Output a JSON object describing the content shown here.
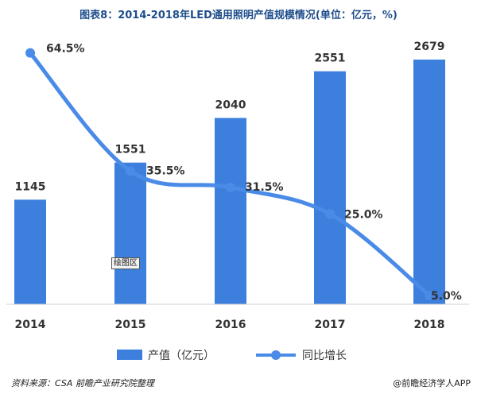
{
  "title": "图表8：2014-2018年LED通用照明产值规模情况(单位：亿元，%)",
  "source": "资料来源：CSA 前瞻产业研究院整理",
  "credit": "@前瞻经济学人APP",
  "plot_area_tag": "绘图区",
  "colors": {
    "bar": "#3c7fdc",
    "line": "#4a8be8",
    "title": "#1f4e8c"
  },
  "chart_data": {
    "type": "bar",
    "categories": [
      "2014",
      "2015",
      "2016",
      "2017",
      "2018"
    ],
    "series": [
      {
        "name": "产值（亿元）",
        "type": "bar",
        "values": [
          1145,
          1551,
          2040,
          2551,
          2679
        ],
        "labels": [
          "1145",
          "1551",
          "2040",
          "2551",
          "2679"
        ]
      },
      {
        "name": "同比增长",
        "type": "line",
        "values": [
          64.5,
          35.5,
          31.5,
          25.0,
          5.0
        ],
        "labels": [
          "64.5%",
          "35.5%",
          "31.5%",
          "25.0%",
          "5.0%"
        ]
      }
    ],
    "legend": "bottom",
    "grid": false
  }
}
